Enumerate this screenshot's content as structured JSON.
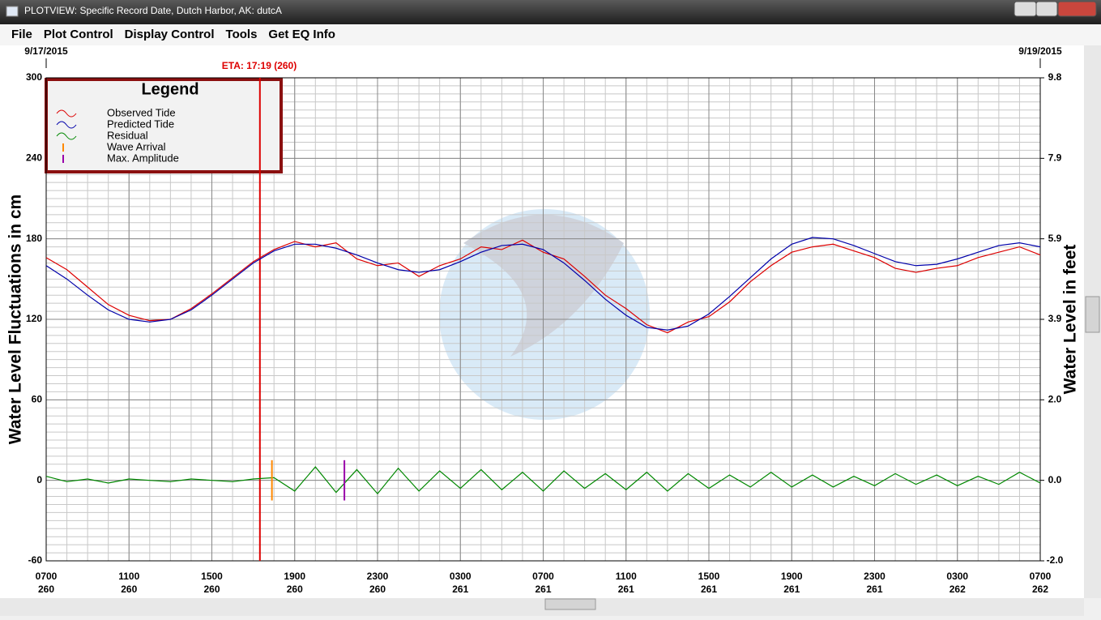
{
  "window": {
    "title": "PLOTVIEW: Specific Record Date, Dutch Harbor, AK: dutcA",
    "menu": [
      "File",
      "Plot Control",
      "Display Control",
      "Tools",
      "Get EQ Info"
    ]
  },
  "chart_data": {
    "type": "line",
    "date_left": "9/17/2015",
    "date_right": "9/19/2015",
    "ylabel": "Water Level Fluctuations in cm",
    "y2label": "Water Level in feet",
    "legend_title": "Legend",
    "legend": "upper left",
    "grid": true,
    "minor_grid": {
      "x_step": 1,
      "y_step": 6
    },
    "x": [
      0,
      1,
      2,
      3,
      4,
      5,
      6,
      7,
      8,
      9,
      10,
      11,
      12,
      13,
      14,
      15,
      16,
      17,
      18,
      19,
      20,
      21,
      22,
      23,
      24,
      25,
      26,
      27,
      28,
      29,
      30,
      31,
      32,
      33,
      34,
      35,
      36,
      37,
      38,
      39,
      40,
      41,
      42,
      43,
      44,
      45,
      46,
      47,
      48
    ],
    "xlim": [
      0,
      48
    ],
    "xticks": [
      {
        "value": 0,
        "label": "0700"
      },
      {
        "value": 4,
        "label": "1100"
      },
      {
        "value": 8,
        "label": "1500"
      },
      {
        "value": 12,
        "label": "1900"
      },
      {
        "value": 16,
        "label": "2300"
      },
      {
        "value": 20,
        "label": "0300"
      },
      {
        "value": 24,
        "label": "0700"
      },
      {
        "value": 28,
        "label": "1100"
      },
      {
        "value": 32,
        "label": "1500"
      },
      {
        "value": 36,
        "label": "1900"
      },
      {
        "value": 40,
        "label": "2300"
      },
      {
        "value": 44,
        "label": "0300"
      },
      {
        "value": 48,
        "label": "0700"
      }
    ],
    "xtick_days": [
      "260",
      "260",
      "260",
      "260",
      "260",
      "261",
      "261",
      "261",
      "261",
      "261",
      "261",
      "262",
      "262"
    ],
    "ylim": [
      -60,
      300
    ],
    "yticks": [
      -60,
      0,
      60,
      120,
      180,
      240,
      300
    ],
    "y2lim": [
      -1.969,
      9.843
    ],
    "y2ticks": [
      {
        "value": -1.969,
        "label": "-2.0"
      },
      {
        "value": 0,
        "label": "0.0"
      },
      {
        "value": 1.969,
        "label": "2.0"
      },
      {
        "value": 3.937,
        "label": "3.9"
      },
      {
        "value": 5.906,
        "label": "5.9"
      },
      {
        "value": 7.874,
        "label": "7.9"
      },
      {
        "value": 9.843,
        "label": "9.8"
      }
    ],
    "series": [
      {
        "name": "Observed Tide",
        "color": "#dd0000",
        "values": [
          166,
          157,
          144,
          131,
          123,
          119,
          120,
          128,
          139,
          151,
          163,
          172,
          178,
          174,
          177,
          165,
          160,
          162,
          152,
          160,
          165,
          174,
          172,
          179,
          170,
          165,
          152,
          138,
          128,
          116,
          110,
          118,
          122,
          133,
          148,
          160,
          170,
          174,
          176,
          171,
          166,
          158,
          155,
          158,
          160,
          166,
          170,
          174,
          168
        ]
      },
      {
        "name": "Predicted Tide",
        "color": "#0000aa",
        "values": [
          160,
          150,
          138,
          127,
          120,
          118,
          120,
          127,
          138,
          150,
          162,
          171,
          176,
          176,
          173,
          168,
          162,
          157,
          155,
          157,
          163,
          170,
          175,
          176,
          172,
          162,
          149,
          135,
          123,
          114,
          112,
          115,
          124,
          137,
          151,
          165,
          176,
          181,
          180,
          175,
          169,
          163,
          160,
          161,
          165,
          170,
          175,
          177,
          174
        ]
      },
      {
        "name": "Residual",
        "color": "#008800",
        "values": [
          3,
          -1,
          1,
          -2,
          1,
          0,
          -1,
          1,
          0,
          -1,
          1,
          2,
          -8,
          10,
          -9,
          8,
          -10,
          9,
          -8,
          7,
          -6,
          8,
          -7,
          6,
          -8,
          7,
          -6,
          5,
          -7,
          6,
          -8,
          5,
          -6,
          4,
          -5,
          6,
          -5,
          4,
          -5,
          3,
          -4,
          5,
          -3,
          4,
          -4,
          3,
          -3,
          6,
          -2
        ]
      }
    ],
    "markers": [
      {
        "name": "Wave Arrival",
        "color": "#ff8800",
        "x": 10.9
      },
      {
        "name": "Max. Amplitude",
        "color": "#9900aa",
        "x": 14.4
      }
    ],
    "eta": {
      "label": "ETA: 17:19 (260)",
      "x": 10.32,
      "color": "#dd0000"
    }
  }
}
